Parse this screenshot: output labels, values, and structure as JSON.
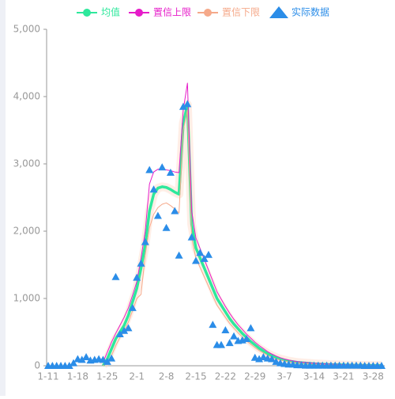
{
  "chart_data": {
    "type": "line",
    "categories": [
      "1-11",
      null,
      null,
      null,
      null,
      null,
      null,
      "1-18",
      null,
      null,
      null,
      null,
      null,
      null,
      "1-25",
      null,
      null,
      null,
      null,
      null,
      null,
      "2-1",
      null,
      null,
      null,
      null,
      null,
      null,
      "2-8",
      null,
      null,
      null,
      null,
      null,
      null,
      "2-15",
      null,
      null,
      null,
      null,
      null,
      null,
      "2-22",
      null,
      null,
      null,
      null,
      null,
      null,
      "2-29",
      null,
      null,
      null,
      null,
      null,
      null,
      "3-7",
      null,
      null,
      null,
      null,
      null,
      null,
      "3-14",
      null,
      null,
      null,
      null,
      null,
      null,
      "3-21",
      null,
      null,
      null,
      null,
      null,
      null,
      "3-28",
      null,
      null
    ],
    "series": [
      {
        "name": "均值",
        "type": "line",
        "color": "#2ee89c",
        "values": [
          null,
          null,
          null,
          null,
          null,
          null,
          null,
          null,
          null,
          null,
          null,
          null,
          null,
          0,
          100,
          250,
          400,
          500,
          600,
          750,
          950,
          1150,
          1450,
          1800,
          2300,
          2550,
          2640,
          2660,
          2650,
          2620,
          2580,
          2550,
          3600,
          3880,
          2100,
          1750,
          1600,
          1450,
          1300,
          1150,
          1000,
          900,
          800,
          700,
          620,
          550,
          480,
          420,
          360,
          310,
          260,
          220,
          180,
          150,
          120,
          100,
          85,
          70,
          60,
          50,
          45,
          40,
          35,
          30,
          27,
          24,
          21,
          18,
          16,
          14,
          12,
          10,
          9,
          8,
          7,
          6,
          5,
          5,
          4,
          4
        ]
      },
      {
        "name": "置信上限",
        "type": "line",
        "color": "#e61cc9",
        "values": [
          null,
          null,
          null,
          null,
          null,
          null,
          null,
          null,
          null,
          null,
          null,
          null,
          null,
          50,
          200,
          350,
          480,
          600,
          720,
          860,
          1050,
          1250,
          1600,
          2000,
          2700,
          2880,
          2920,
          2920,
          2910,
          2900,
          2880,
          2870,
          3800,
          4200,
          2300,
          1900,
          1740,
          1580,
          1420,
          1260,
          1100,
          990,
          880,
          780,
          690,
          610,
          540,
          470,
          410,
          350,
          300,
          255,
          210,
          175,
          145,
          120,
          100,
          85,
          72,
          62,
          55,
          50,
          44,
          39,
          35,
          31,
          28,
          25,
          22,
          19,
          17,
          15,
          13,
          12,
          11,
          10,
          9,
          8,
          7,
          6
        ]
      },
      {
        "name": "置信下限",
        "type": "line",
        "color": "#f5a98a",
        "values": [
          null,
          null,
          null,
          null,
          null,
          null,
          null,
          null,
          null,
          null,
          null,
          null,
          null,
          0,
          50,
          150,
          300,
          420,
          520,
          650,
          820,
          1000,
          1060,
          1650,
          2050,
          2250,
          2350,
          2400,
          2420,
          2380,
          2330,
          2270,
          3500,
          3800,
          1900,
          1600,
          1460,
          1320,
          1180,
          1040,
          900,
          810,
          720,
          630,
          560,
          490,
          430,
          370,
          320,
          270,
          225,
          190,
          155,
          125,
          100,
          85,
          70,
          58,
          50,
          42,
          38,
          33,
          29,
          25,
          22,
          19,
          16,
          14,
          12,
          10,
          9,
          8,
          7,
          6,
          5,
          4,
          4,
          3,
          3,
          2
        ]
      },
      {
        "name": "实际数据",
        "type": "scatter",
        "color": "#2b8de8",
        "values": [
          0,
          0,
          0,
          0,
          0,
          0,
          40,
          100,
          90,
          130,
          80,
          90,
          100,
          90,
          60,
          110,
          1320,
          470,
          520,
          560,
          860,
          1310,
          1520,
          1840,
          2910,
          2620,
          2230,
          2950,
          2050,
          2870,
          2300,
          1640,
          3850,
          3890,
          1910,
          1560,
          1680,
          1590,
          1650,
          610,
          310,
          310,
          530,
          340,
          440,
          370,
          380,
          400,
          560,
          120,
          100,
          130,
          110,
          100,
          60,
          40,
          30,
          20,
          20,
          10,
          10,
          5,
          5,
          5,
          5,
          5,
          5,
          5,
          5,
          5,
          5,
          5,
          5,
          5,
          5,
          0,
          0,
          0,
          0,
          0
        ]
      }
    ],
    "ylim": [
      0,
      5000
    ],
    "yticks": [
      0,
      {
        "value": 1000,
        "label": "1,000"
      },
      {
        "value": 2000,
        "label": "2,000"
      },
      {
        "value": 3000,
        "label": "3,000"
      },
      {
        "value": 4000,
        "label": "4,000"
      },
      {
        "value": 5000,
        "label": "5,000"
      }
    ],
    "grid": false,
    "legend": "top"
  }
}
